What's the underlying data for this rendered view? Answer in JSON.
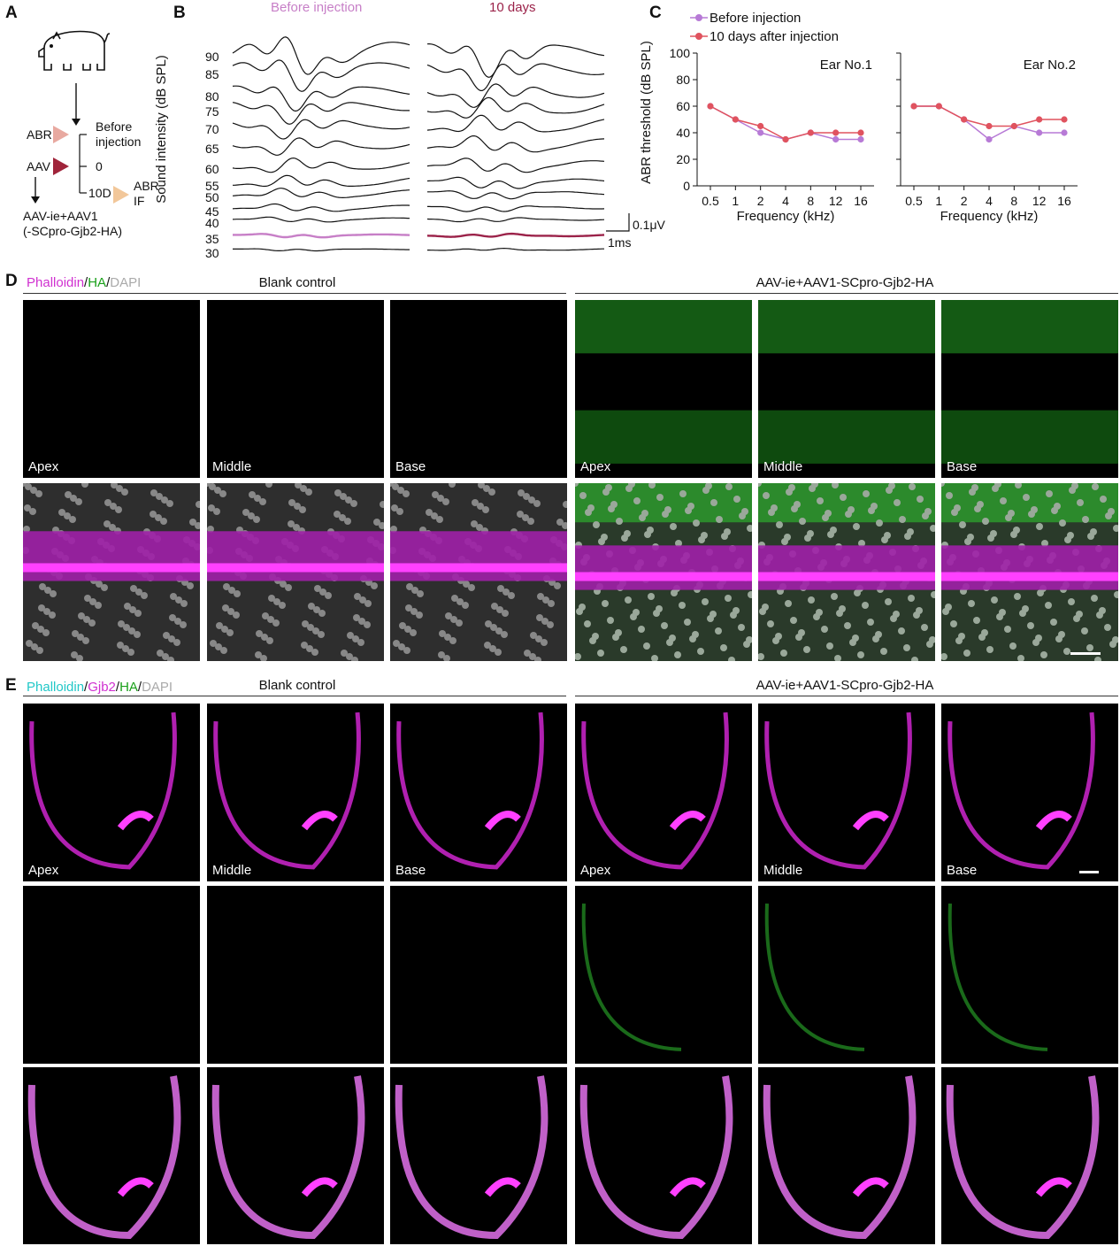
{
  "panels": {
    "a": "A",
    "b": "B",
    "c": "C",
    "d": "D",
    "e": "E"
  },
  "panel_a": {
    "abr": "ABR",
    "aav": "AAV",
    "before_line1": "Before",
    "before_line2": "injection",
    "zero": "0",
    "tenD": "10D",
    "abr_if_1": "ABR",
    "abr_if_2": "IF",
    "vector_1": "AAV-ie+AAV1",
    "vector_2": "(-SCpro-Gjb2-HA)",
    "colors": {
      "abr_triangle": "#e8a9a0",
      "aav_triangle": "#a0243a",
      "if_triangle": "#f2c79a"
    }
  },
  "panel_b": {
    "before_title": "Before injection",
    "after_title": "10 days",
    "ylabel": "Sound intensity (dB SPL)",
    "levels": [
      "90",
      "85",
      "80",
      "75",
      "70",
      "65",
      "60",
      "55",
      "50",
      "45",
      "40",
      "35",
      "30"
    ],
    "threshold_level": "35",
    "scale_v": "0.1μV",
    "scale_t": "1ms",
    "colors": {
      "before": "#c77fc7",
      "after": "#9b2249"
    }
  },
  "chart_data": [
    {
      "type": "line",
      "title": "Ear No.1",
      "categories": [
        "0.5",
        "1",
        "2",
        "4",
        "8",
        "12",
        "16"
      ],
      "series": [
        {
          "name": "Before injection",
          "values": [
            60,
            50,
            40,
            35,
            40,
            35,
            35
          ]
        },
        {
          "name": "10 days after injection",
          "values": [
            60,
            50,
            45,
            35,
            40,
            40,
            40
          ]
        }
      ],
      "xlabel": "Frequency (kHz)",
      "ylabel": "ABR threshold (dB SPL)",
      "ylim": [
        0,
        100
      ],
      "yticks": [
        "0",
        "20",
        "40",
        "60",
        "80",
        "100"
      ]
    },
    {
      "type": "line",
      "title": "Ear No.2",
      "categories": [
        "0.5",
        "1",
        "2",
        "4",
        "8",
        "12",
        "16"
      ],
      "series": [
        {
          "name": "Before injection",
          "values": [
            60,
            60,
            50,
            35,
            45,
            40,
            40
          ]
        },
        {
          "name": "10 days after injection",
          "values": [
            60,
            60,
            50,
            45,
            45,
            50,
            50
          ]
        }
      ],
      "xlabel": "Frequency (kHz)",
      "ylabel": "",
      "ylim": [
        0,
        100
      ]
    }
  ],
  "legend": {
    "before": "Before injection",
    "after": "10 days after injection",
    "colors": {
      "before": "#b77ad6",
      "after": "#e0535f"
    }
  },
  "panel_d": {
    "stain_phalloidin": "Phalloidin",
    "stain_ha": "HA",
    "stain_dapi": "DAPI",
    "sep": "/",
    "group_left": "Blank control",
    "group_right": "AAV-ie+AAV1-SCpro-Gjb2-HA",
    "positions": [
      "Apex",
      "Middle",
      "Base"
    ]
  },
  "panel_e": {
    "stain_phalloidin": "Phalloidin",
    "stain_gjb2": "Gjb2",
    "stain_ha": "HA",
    "stain_dapi": "DAPI",
    "sep": "/",
    "group_left": "Blank control",
    "group_right": "AAV-ie+AAV1-SCpro-Gjb2-HA",
    "positions": [
      "Apex",
      "Middle",
      "Base"
    ]
  }
}
